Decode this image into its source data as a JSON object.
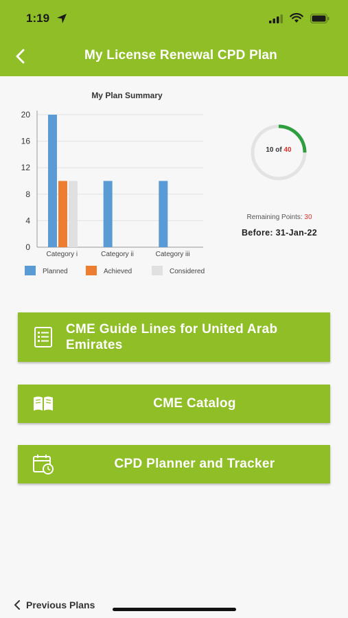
{
  "status_bar": {
    "time": "1:19",
    "icons": [
      "location-arrow-icon",
      "cellular-signal-icon",
      "wifi-icon",
      "battery-icon"
    ]
  },
  "header": {
    "title": "My License Renewal CPD Plan",
    "back_icon": "chevron-left-icon",
    "color": "#8fbe26"
  },
  "chart_data": {
    "type": "bar",
    "title": "My Plan Summary",
    "categories": [
      "Category i",
      "Category ii",
      "Category iii"
    ],
    "series": [
      {
        "name": "Planned",
        "values": [
          20,
          10,
          10
        ],
        "color": "#5b9bd5"
      },
      {
        "name": "Achieved",
        "values": [
          10,
          0,
          0
        ],
        "color": "#ed7d31"
      },
      {
        "name": "Considered",
        "values": [
          10,
          0,
          0
        ],
        "color": "#e0e0e0"
      }
    ],
    "yticks": [
      0,
      4,
      8,
      12,
      16,
      20
    ],
    "ylim": [
      0,
      20
    ],
    "grid": true,
    "legend": "bottom"
  },
  "progress": {
    "achieved": "10",
    "separator": "of",
    "total": "40",
    "fraction": 0.25,
    "track_color": "#e3e3e3",
    "fill_color": "#2e9e3e"
  },
  "remaining": {
    "label": "Remaining Points:",
    "value": "30"
  },
  "deadline": "Before: 31-Jan-22",
  "buttons": [
    {
      "label": "CME Guide Lines for United Arab Emirates",
      "icon": "checklist-document-icon"
    },
    {
      "label": "CME Catalog",
      "icon": "open-book-icon"
    },
    {
      "label": "CPD Planner and Tracker",
      "icon": "calendar-clock-icon"
    }
  ],
  "footer": {
    "previous_plans": "Previous Plans",
    "icon": "chevron-left-icon"
  }
}
